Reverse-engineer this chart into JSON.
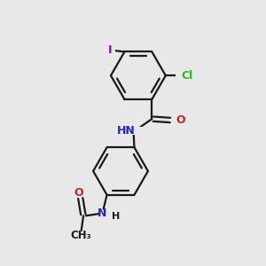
{
  "background_color": "#e8e8e8",
  "bond_color": "#1a1a1a",
  "bond_width": 1.6,
  "atom_colors": {
    "C": "#1a1a1a",
    "H": "#1a1a1a",
    "N": "#2222cc",
    "O": "#cc2222",
    "Cl": "#22bb22",
    "I": "#9900cc"
  },
  "font_size": 8.5,
  "fig_size": [
    3.0,
    3.0
  ],
  "dpi": 100,
  "xlim": [
    0,
    10
  ],
  "ylim": [
    0,
    10
  ]
}
